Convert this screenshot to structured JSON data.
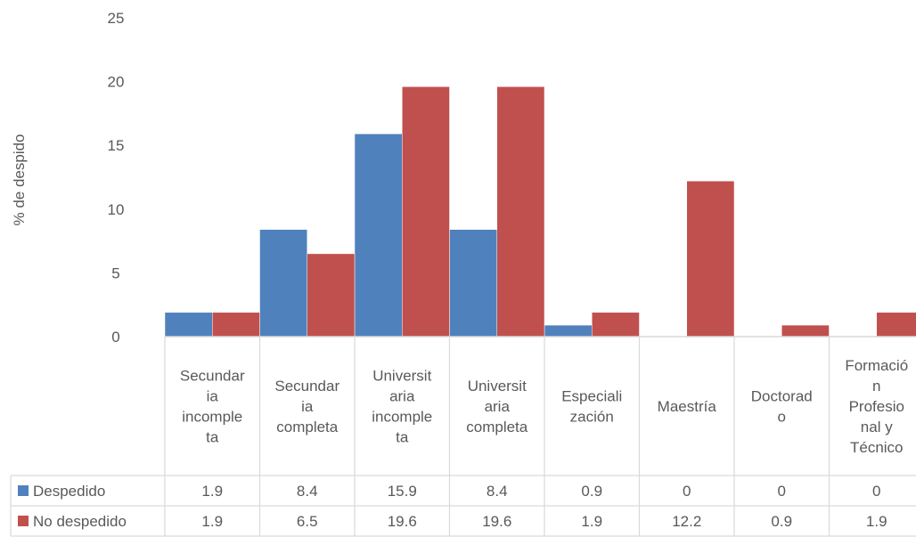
{
  "chart_data": {
    "type": "bar",
    "title": "",
    "xlabel": "",
    "ylabel": "% de despido",
    "ylim": [
      0,
      25
    ],
    "yticks": [
      0,
      5,
      10,
      15,
      20,
      25
    ],
    "grid": false,
    "legend": "data-table-left",
    "categories": [
      [
        "Secundar",
        "ia",
        "incomple",
        "ta"
      ],
      [
        "Secundar",
        "ia",
        "completa"
      ],
      [
        "Universit",
        "aria",
        "incomple",
        "ta"
      ],
      [
        "Universit",
        "aria",
        "completa"
      ],
      [
        "Especiali",
        "zación"
      ],
      [
        "Maestría"
      ],
      [
        "Doctorad",
        "o"
      ],
      [
        "Formació",
        "n",
        "Profesio",
        "nal y",
        "Técnico"
      ]
    ],
    "series": [
      {
        "name": "Despedido",
        "color": "#4F81BD",
        "values": [
          1.9,
          8.4,
          15.9,
          8.4,
          0.9,
          0,
          0,
          0
        ],
        "labels": [
          "1.9",
          "8.4",
          "15.9",
          "8.4",
          "0.9",
          "0",
          "0",
          "0"
        ]
      },
      {
        "name": "No despedido",
        "color": "#C0504D",
        "values": [
          1.9,
          6.5,
          19.6,
          19.6,
          1.9,
          12.2,
          0.9,
          1.9
        ],
        "labels": [
          "1.9",
          "6.5",
          "19.6",
          "19.6",
          "1.9",
          "12.2",
          "0.9",
          "1.9"
        ]
      }
    ]
  }
}
